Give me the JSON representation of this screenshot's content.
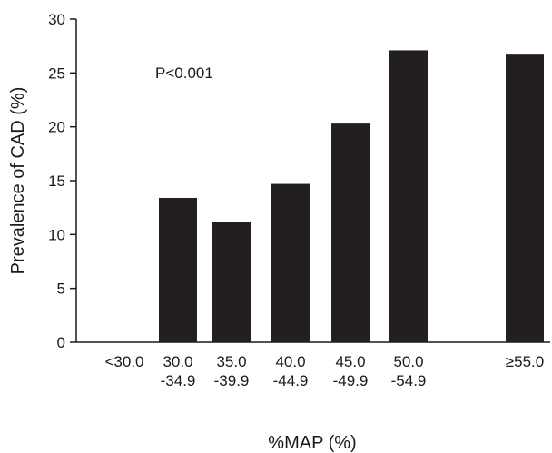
{
  "chart_data": {
    "type": "bar",
    "xlabel": "%MAP (%)",
    "ylabel": "Prevalence of CAD (%)",
    "annotation": "P<0.001",
    "ylim": [
      0,
      30
    ],
    "yticks": [
      0,
      5,
      10,
      15,
      20,
      25,
      30
    ],
    "categories": [
      [
        "<30.0"
      ],
      [
        "30.0",
        "-34.9"
      ],
      [
        "35.0",
        "-39.9"
      ],
      [
        "40.0",
        "-44.9"
      ],
      [
        "45.0",
        "-49.9"
      ],
      [
        "50.0",
        "-54.9"
      ],
      [
        "≥55.0"
      ]
    ],
    "values": [
      0,
      13.4,
      11.2,
      14.7,
      20.3,
      27.1,
      26.7
    ],
    "bar_color": "#231f20",
    "grid": false
  }
}
